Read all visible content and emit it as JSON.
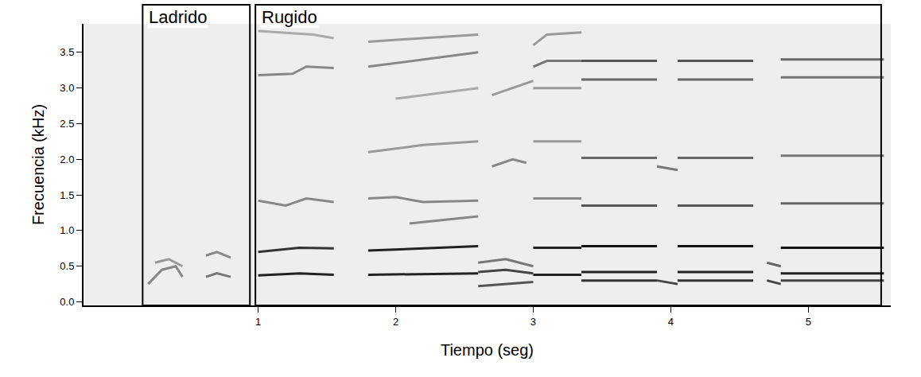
{
  "chart_data": {
    "type": "line",
    "x_label": "Tiempo (seg)",
    "y_label": "Frecuencia (kHz)",
    "xlim": [
      -0.27,
      5.6
    ],
    "ylim": [
      -0.05,
      3.9
    ],
    "xticks": [
      1,
      2,
      3,
      4,
      5
    ],
    "yticks": [
      {
        "value": 0,
        "label": "0.0"
      },
      0.5,
      {
        "value": 1,
        "label": "1.0"
      },
      1.5,
      {
        "value": 2,
        "label": "2.0"
      },
      2.5,
      {
        "value": 3,
        "label": "3.0"
      },
      3.5
    ],
    "grid": false,
    "boxes": [
      {
        "label": "Ladrido",
        "x": [
          0.16,
          0.94
        ]
      },
      {
        "label": "Rugido",
        "x": [
          0.98,
          5.53
        ]
      }
    ],
    "contours": [
      {
        "x": [
          0.2,
          0.3,
          0.4,
          0.45
        ],
        "y": [
          0.25,
          0.45,
          0.5,
          0.35
        ],
        "color": "#888888"
      },
      {
        "x": [
          0.25,
          0.35,
          0.45
        ],
        "y": [
          0.55,
          0.6,
          0.5
        ],
        "color": "#999999"
      },
      {
        "x": [
          0.62,
          0.7,
          0.8
        ],
        "y": [
          0.35,
          0.4,
          0.35
        ],
        "color": "#777777"
      },
      {
        "x": [
          0.62,
          0.7,
          0.8
        ],
        "y": [
          0.65,
          0.7,
          0.62
        ],
        "color": "#888888"
      },
      {
        "x": [
          1.0,
          1.3,
          1.55
        ],
        "y": [
          0.37,
          0.4,
          0.38
        ],
        "color": "#222222"
      },
      {
        "x": [
          1.0,
          1.3,
          1.55
        ],
        "y": [
          0.7,
          0.76,
          0.75
        ],
        "color": "#333333"
      },
      {
        "x": [
          1.0,
          1.2,
          1.35,
          1.55
        ],
        "y": [
          1.42,
          1.35,
          1.45,
          1.4
        ],
        "color": "#888888"
      },
      {
        "x": [
          1.0,
          1.25,
          1.35,
          1.55
        ],
        "y": [
          3.18,
          3.2,
          3.3,
          3.28
        ],
        "color": "#888888"
      },
      {
        "x": [
          1.0,
          1.4,
          1.55
        ],
        "y": [
          3.8,
          3.75,
          3.7
        ],
        "color": "#aaaaaa"
      },
      {
        "x": [
          1.8,
          2.2,
          2.6
        ],
        "y": [
          0.38,
          0.39,
          0.4
        ],
        "color": "#222222"
      },
      {
        "x": [
          1.8,
          2.2,
          2.6
        ],
        "y": [
          0.72,
          0.75,
          0.78
        ],
        "color": "#222222"
      },
      {
        "x": [
          2.1,
          2.35,
          2.6
        ],
        "y": [
          1.1,
          1.15,
          1.2
        ],
        "color": "#888888"
      },
      {
        "x": [
          1.8,
          2.0,
          2.2,
          2.6
        ],
        "y": [
          1.45,
          1.47,
          1.4,
          1.42
        ],
        "color": "#888888"
      },
      {
        "x": [
          1.8,
          2.2,
          2.6
        ],
        "y": [
          2.1,
          2.2,
          2.25
        ],
        "color": "#999999"
      },
      {
        "x": [
          2.0,
          2.6
        ],
        "y": [
          2.85,
          3.0
        ],
        "color": "#aaaaaa"
      },
      {
        "x": [
          1.8,
          2.2,
          2.6
        ],
        "y": [
          3.3,
          3.4,
          3.5
        ],
        "color": "#888888"
      },
      {
        "x": [
          1.8,
          2.2,
          2.6
        ],
        "y": [
          3.65,
          3.7,
          3.75
        ],
        "color": "#999999"
      },
      {
        "x": [
          2.6,
          2.8,
          3.0
        ],
        "y": [
          0.22,
          0.25,
          0.28
        ],
        "color": "#555555"
      },
      {
        "x": [
          2.6,
          2.8,
          3.0
        ],
        "y": [
          0.42,
          0.45,
          0.4
        ],
        "color": "#444444"
      },
      {
        "x": [
          2.6,
          2.8,
          3.0
        ],
        "y": [
          0.55,
          0.6,
          0.5
        ],
        "color": "#777777"
      },
      {
        "x": [
          2.7,
          2.85,
          2.95
        ],
        "y": [
          1.9,
          2.0,
          1.95
        ],
        "color": "#888888"
      },
      {
        "x": [
          2.7,
          2.85,
          3.0
        ],
        "y": [
          2.9,
          3.0,
          3.1
        ],
        "color": "#999999"
      },
      {
        "x": [
          3.0,
          3.35
        ],
        "y": [
          0.38,
          0.38
        ],
        "color": "#222222"
      },
      {
        "x": [
          3.0,
          3.35
        ],
        "y": [
          0.76,
          0.76
        ],
        "color": "#222222"
      },
      {
        "x": [
          3.0,
          3.35
        ],
        "y": [
          1.45,
          1.45
        ],
        "color": "#888888"
      },
      {
        "x": [
          3.0,
          3.35
        ],
        "y": [
          2.25,
          2.25
        ],
        "color": "#999999"
      },
      {
        "x": [
          3.0,
          3.35
        ],
        "y": [
          3.0,
          3.0
        ],
        "color": "#999999"
      },
      {
        "x": [
          3.0,
          3.1,
          3.35
        ],
        "y": [
          3.3,
          3.38,
          3.38
        ],
        "color": "#777777"
      },
      {
        "x": [
          3.0,
          3.1,
          3.35
        ],
        "y": [
          3.6,
          3.75,
          3.78
        ],
        "color": "#999999"
      },
      {
        "x": [
          3.35,
          3.9
        ],
        "y": [
          0.3,
          0.3
        ],
        "color": "#333333"
      },
      {
        "x": [
          3.35,
          3.9
        ],
        "y": [
          0.42,
          0.42
        ],
        "color": "#222222"
      },
      {
        "x": [
          3.35,
          3.9
        ],
        "y": [
          0.78,
          0.78
        ],
        "color": "#111111"
      },
      {
        "x": [
          3.35,
          3.9
        ],
        "y": [
          1.35,
          1.35
        ],
        "color": "#555555"
      },
      {
        "x": [
          3.35,
          3.9
        ],
        "y": [
          2.02,
          2.02
        ],
        "color": "#666666"
      },
      {
        "x": [
          3.35,
          3.9
        ],
        "y": [
          3.12,
          3.12
        ],
        "color": "#666666"
      },
      {
        "x": [
          3.35,
          3.9
        ],
        "y": [
          3.38,
          3.38
        ],
        "color": "#555555"
      },
      {
        "x": [
          3.9,
          4.05
        ],
        "y": [
          0.3,
          0.25
        ],
        "color": "#444444"
      },
      {
        "x": [
          3.9,
          4.05
        ],
        "y": [
          1.9,
          1.85
        ],
        "color": "#777777"
      },
      {
        "x": [
          4.05,
          4.6
        ],
        "y": [
          0.3,
          0.3
        ],
        "color": "#333333"
      },
      {
        "x": [
          4.05,
          4.6
        ],
        "y": [
          0.42,
          0.42
        ],
        "color": "#222222"
      },
      {
        "x": [
          4.05,
          4.6
        ],
        "y": [
          0.78,
          0.78
        ],
        "color": "#111111"
      },
      {
        "x": [
          4.05,
          4.6
        ],
        "y": [
          1.35,
          1.35
        ],
        "color": "#555555"
      },
      {
        "x": [
          4.05,
          4.6
        ],
        "y": [
          2.02,
          2.02
        ],
        "color": "#666666"
      },
      {
        "x": [
          4.05,
          4.6
        ],
        "y": [
          3.12,
          3.12
        ],
        "color": "#666666"
      },
      {
        "x": [
          4.05,
          4.6
        ],
        "y": [
          3.38,
          3.38
        ],
        "color": "#555555"
      },
      {
        "x": [
          4.7,
          4.8
        ],
        "y": [
          0.3,
          0.25
        ],
        "color": "#444444"
      },
      {
        "x": [
          4.7,
          4.8
        ],
        "y": [
          0.55,
          0.5
        ],
        "color": "#666666"
      },
      {
        "x": [
          4.8,
          5.55
        ],
        "y": [
          0.3,
          0.3
        ],
        "color": "#444444"
      },
      {
        "x": [
          4.8,
          5.55
        ],
        "y": [
          0.4,
          0.4
        ],
        "color": "#222222"
      },
      {
        "x": [
          4.8,
          5.55
        ],
        "y": [
          0.76,
          0.76
        ],
        "color": "#111111"
      },
      {
        "x": [
          4.8,
          5.55
        ],
        "y": [
          1.38,
          1.38
        ],
        "color": "#666666"
      },
      {
        "x": [
          4.8,
          5.55
        ],
        "y": [
          2.05,
          2.05
        ],
        "color": "#777777"
      },
      {
        "x": [
          4.8,
          5.55
        ],
        "y": [
          3.15,
          3.15
        ],
        "color": "#777777"
      },
      {
        "x": [
          4.8,
          5.55
        ],
        "y": [
          3.4,
          3.4
        ],
        "color": "#666666"
      }
    ]
  }
}
